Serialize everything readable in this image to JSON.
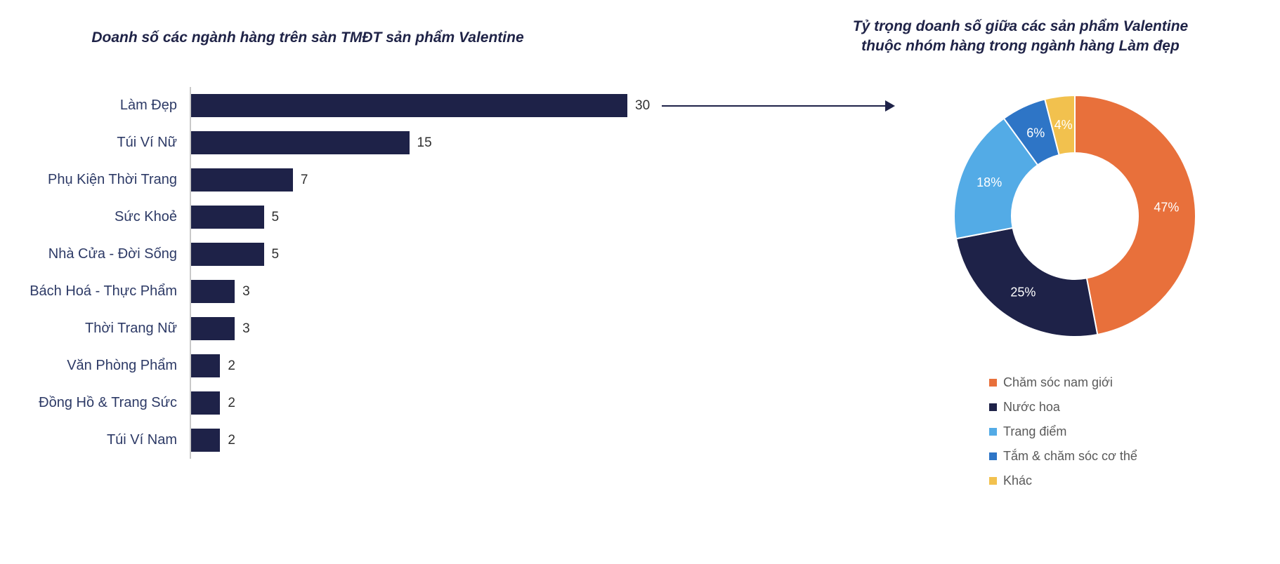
{
  "page": {
    "background": "#ffffff"
  },
  "theme": {
    "navy": "#1e2248",
    "title_color": "#1f2347",
    "category_label_color": "#2d3a66",
    "value_label_color": "#303030",
    "legend_text_color": "#595959",
    "axis_line_color": "#c9c9c9",
    "arrow_color": "#1e2248"
  },
  "donut_header": {
    "line1": "Tỷ trọng doanh số giữa các sản phẩm Valentine",
    "line2": "thuộc nhóm hàng trong ngành hàng Làm đẹp"
  },
  "chart_data": [
    {
      "type": "bar",
      "orientation": "horizontal",
      "title": "Doanh số các ngành hàng trên sàn TMĐT sản phẩm Valentine",
      "categories": [
        "Làm Đẹp",
        "Túi Ví Nữ",
        "Phụ Kiện Thời Trang",
        "Sức Khoẻ",
        "Nhà Cửa - Đời Sống",
        "Bách Hoá - Thực Phẩm",
        "Thời Trang Nữ",
        "Văn Phòng Phẩm",
        "Đồng Hồ & Trang Sức",
        "Túi Ví Nam"
      ],
      "values": [
        30,
        15,
        7,
        5,
        5,
        3,
        3,
        2,
        2,
        2
      ],
      "scale_max": 30,
      "bar_color": "#1e2248",
      "grid": false,
      "value_labels_shown": true,
      "annotation": "arrow from 'Làm Đẹp' bar pointing to the donut chart"
    },
    {
      "type": "pie",
      "donut": true,
      "title": "Tỷ trọng doanh số giữa các sản phẩm Valentine thuộc nhóm hàng trong ngành hàng Làm đẹp",
      "labels": [
        "Chăm sóc nam giới",
        "Nước hoa",
        "Trang điểm",
        "Tắm & chăm sóc cơ thể",
        "Khác"
      ],
      "values": [
        47,
        25,
        18,
        6,
        4
      ],
      "value_labels": [
        "47%",
        "25%",
        "18%",
        "6%",
        "4%"
      ],
      "colors": [
        "#e8703b",
        "#1e2248",
        "#53abe6",
        "#2e75c6",
        "#f2c14e"
      ],
      "start_angle_deg": 0,
      "direction": "clockwise",
      "legend_position": "bottom"
    }
  ]
}
